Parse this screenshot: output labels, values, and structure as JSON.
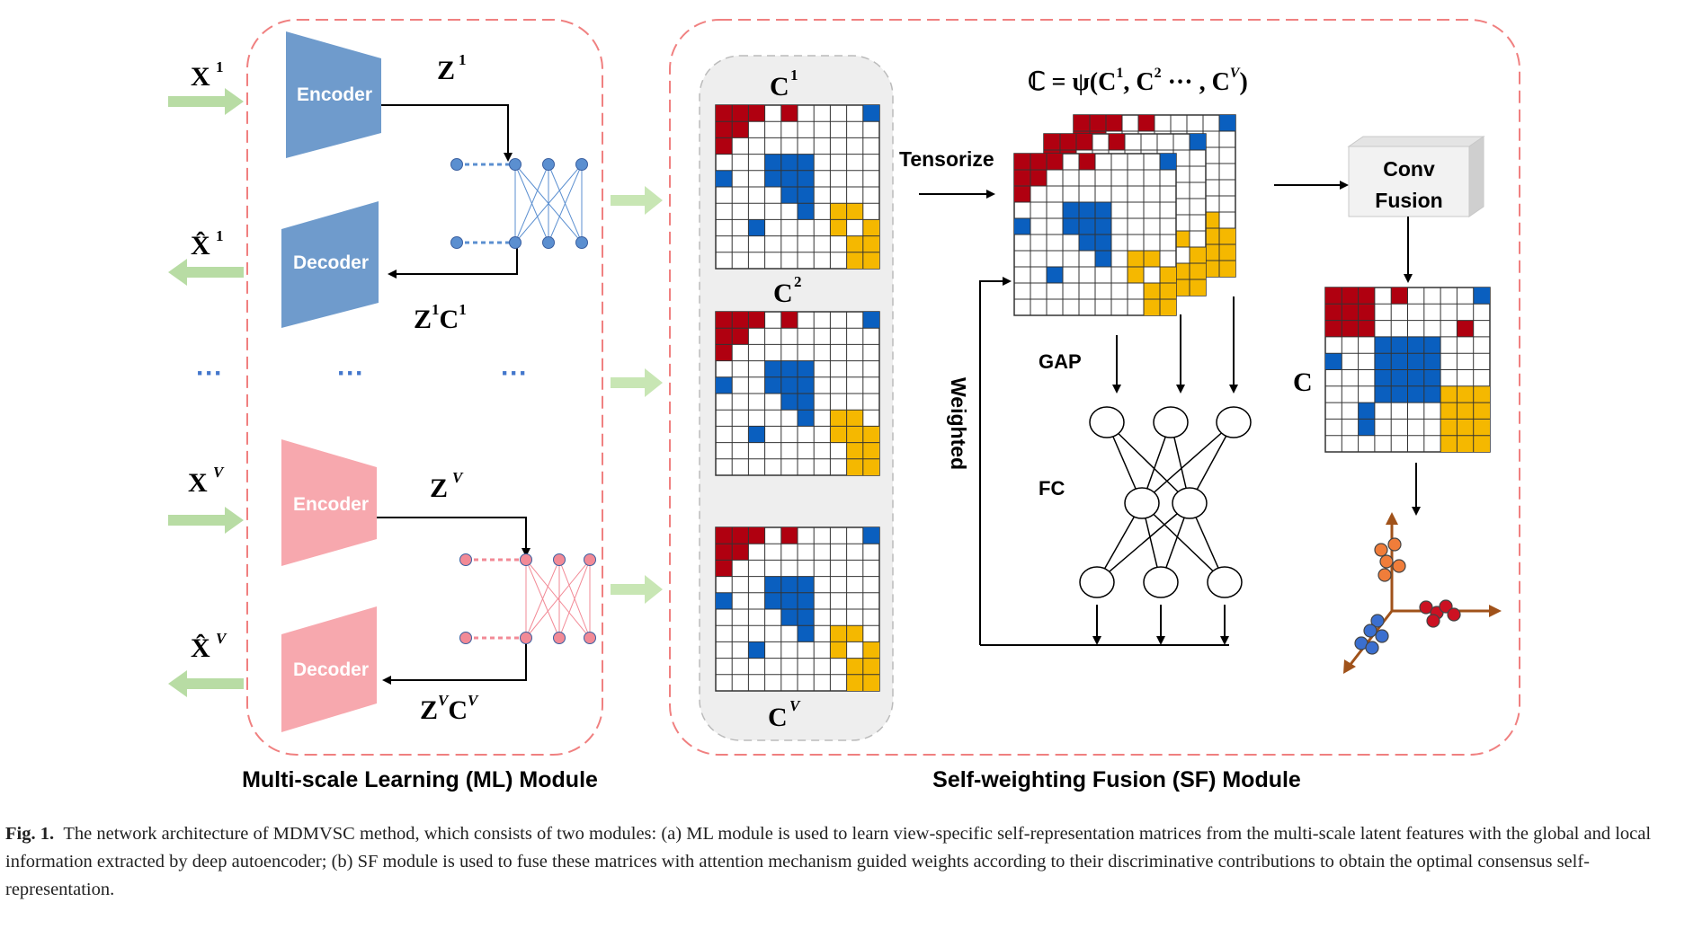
{
  "ml_module": {
    "title": "Multi-scale Learning (ML) Module",
    "encoder_label": "Encoder",
    "decoder_label": "Decoder",
    "view1": {
      "input": "X",
      "input_sup": "1",
      "output": "X̂",
      "output_sup": "1",
      "latent": "Z",
      "latent_sup": "1",
      "recon_a": "Z",
      "recon_a_sup": "1",
      "recon_b": "C",
      "recon_b_sup": "1"
    },
    "viewV": {
      "input": "X",
      "input_sup": "V",
      "output": "X̂",
      "output_sup": "V",
      "latent": "Z",
      "latent_sup": "V",
      "recon_a": "Z",
      "recon_a_sup": "V",
      "recon_b": "C",
      "recon_b_sup": "V"
    },
    "ellipsis": "···",
    "colors": {
      "view1": "#6f9bcc",
      "viewV": "#f7a8ae",
      "arrow": "#b8dca4"
    }
  },
  "matrices": {
    "c1": {
      "label": "C",
      "sup": "1"
    },
    "c2": {
      "label": "C",
      "sup": "2"
    },
    "cv": {
      "label": "C",
      "sup": "V"
    }
  },
  "sf_module": {
    "title": "Self-weighting Fusion (SF) Module",
    "formula_lhs": "ℂ = ψ(",
    "formula_parts": [
      "C",
      "1",
      ", C",
      "2",
      " ··· , C",
      "V",
      ")"
    ],
    "tensorize": "Tensorize",
    "gap": "GAP",
    "fc": "FC",
    "weighted": "Weighted",
    "conv_line1": "Conv",
    "conv_line2": "Fusion",
    "output_label": "C"
  },
  "palette": {
    "red": "#b00010",
    "blue": "#0a5fbf",
    "yellow": "#f5b800",
    "dash": "#f08080"
  },
  "caption": {
    "fig_label": "Fig. 1.",
    "text": "The network architecture of MDMVSC method, which consists of two modules: (a) ML module is used to learn view-specific self-representation matrices from the multi-scale latent features with the global and local information extracted by deep autoencoder; (b) SF module is used to fuse these matrices with attention mechanism guided weights according to their discriminative contributions to obtain the optimal consensus self-representation."
  }
}
